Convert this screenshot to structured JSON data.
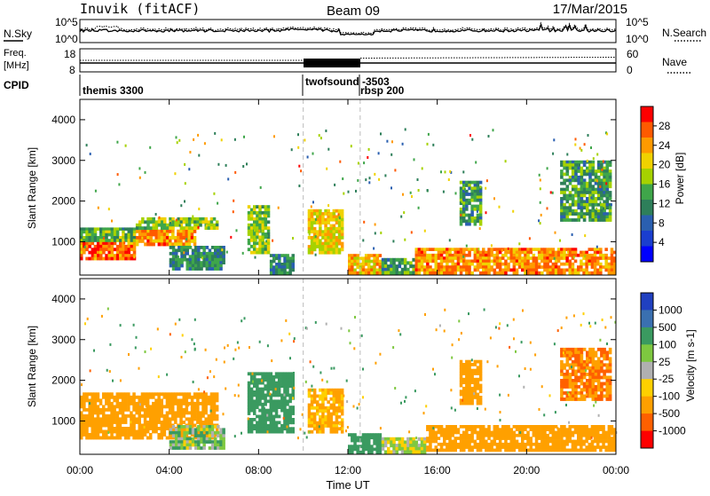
{
  "header": {
    "station": "Inuvik (fitACF)",
    "beam": "Beam 09",
    "date": "17/Mar/2015"
  },
  "noise_panel": {
    "left_label": "N.Sky",
    "right_label": "N.Search",
    "ticks": [
      "10^5",
      "10^0"
    ]
  },
  "freq_panel": {
    "left_label_top": "Freq.",
    "left_label_unit": "[MHz]",
    "left_ticks": [
      "18",
      "8"
    ],
    "right_label": "Nave",
    "right_ticks": [
      "60",
      "0"
    ]
  },
  "cpid": {
    "label": "CPID",
    "segments": [
      "themis 3300",
      "twofsound -3503",
      "rbsp 200"
    ]
  },
  "x_axis": {
    "ticks": [
      "00:00",
      "04:00",
      "08:00",
      "12:00",
      "16:00",
      "20:00",
      "00:00"
    ],
    "title": "Time UT"
  },
  "chart_data": [
    {
      "type": "heatmap",
      "title": "",
      "quantity": "Power",
      "ylabel": "Slant Range [km]",
      "ylim": [
        180,
        4500
      ],
      "y_ticks": [
        1000,
        2000,
        3000,
        4000
      ],
      "xlabel": "Time UT",
      "xlim_hours": [
        0,
        24
      ],
      "colorbar": {
        "label": "Power [dB]",
        "ticks": [
          "28",
          "24",
          "20",
          "16",
          "12",
          "8",
          "4"
        ],
        "colors": [
          "#ff0000",
          "#ff5a00",
          "#ff9a00",
          "#f0d200",
          "#a6d200",
          "#3fa64a",
          "#2e7f5a",
          "#2a5fb0",
          "#1a3ecf",
          "#0000ff"
        ]
      },
      "regions": [
        {
          "t0": 0.0,
          "t1": 2.5,
          "r0": 550,
          "r1": 1000,
          "value": 26
        },
        {
          "t0": 0.0,
          "t1": 2.5,
          "r0": 1000,
          "r1": 1350,
          "value": 14
        },
        {
          "t0": 2.5,
          "t1": 5.2,
          "r0": 900,
          "r1": 1300,
          "value": 24
        },
        {
          "t0": 2.5,
          "t1": 6.2,
          "r0": 1300,
          "r1": 1600,
          "value": 16
        },
        {
          "t0": 4.0,
          "t1": 6.5,
          "r0": 300,
          "r1": 900,
          "value": 10
        },
        {
          "t0": 7.5,
          "t1": 8.5,
          "r0": 700,
          "r1": 1900,
          "value": 16
        },
        {
          "t0": 8.5,
          "t1": 9.6,
          "r0": 200,
          "r1": 700,
          "value": 10
        },
        {
          "t0": 10.2,
          "t1": 11.8,
          "r0": 700,
          "r1": 1800,
          "value": 20
        },
        {
          "t0": 12.0,
          "t1": 13.5,
          "r0": 200,
          "r1": 700,
          "value": 22
        },
        {
          "t0": 13.5,
          "t1": 15.0,
          "r0": 200,
          "r1": 600,
          "value": 12
        },
        {
          "t0": 15.0,
          "t1": 24.0,
          "r0": 200,
          "r1": 850,
          "value": 24
        },
        {
          "t0": 17.0,
          "t1": 18.0,
          "r0": 1400,
          "r1": 2500,
          "value": 12
        },
        {
          "t0": 21.5,
          "t1": 23.8,
          "r0": 1500,
          "r1": 3000,
          "value": 12
        }
      ]
    },
    {
      "type": "heatmap",
      "title": "",
      "quantity": "Velocity",
      "ylabel": "Slant Range [km]",
      "ylim": [
        180,
        4500
      ],
      "y_ticks": [
        1000,
        2000,
        3000,
        4000
      ],
      "xlabel": "Time UT",
      "xlim_hours": [
        0,
        24
      ],
      "colorbar": {
        "label": "Velocity [m s-1]",
        "ticks": [
          "1000",
          "500",
          "100",
          "25",
          "-25",
          "-100",
          "-500",
          "-1000"
        ],
        "colors": [
          "#2040c0",
          "#3a70b0",
          "#3a9a60",
          "#7ec840",
          "#b0b0b0",
          "#ffd000",
          "#ffa000",
          "#ff6000",
          "#ff0000"
        ]
      },
      "regions": [
        {
          "t0": 0.0,
          "t1": 6.2,
          "r0": 550,
          "r1": 1700,
          "value": -300
        },
        {
          "t0": 4.0,
          "t1": 6.5,
          "r0": 300,
          "r1": 900,
          "value": 60
        },
        {
          "t0": 7.5,
          "t1": 9.6,
          "r0": 700,
          "r1": 2200,
          "value": 400
        },
        {
          "t0": 10.2,
          "t1": 11.8,
          "r0": 700,
          "r1": 1800,
          "value": -150
        },
        {
          "t0": 12.0,
          "t1": 13.5,
          "r0": 200,
          "r1": 700,
          "value": 300
        },
        {
          "t0": 13.5,
          "t1": 15.5,
          "r0": 200,
          "r1": 600,
          "value": 0
        },
        {
          "t0": 15.5,
          "t1": 24.0,
          "r0": 250,
          "r1": 900,
          "value": -300
        },
        {
          "t0": 17.0,
          "t1": 18.0,
          "r0": 1400,
          "r1": 2500,
          "value": -300
        },
        {
          "t0": 21.5,
          "t1": 23.8,
          "r0": 1500,
          "r1": 2800,
          "value": -500
        }
      ]
    }
  ]
}
